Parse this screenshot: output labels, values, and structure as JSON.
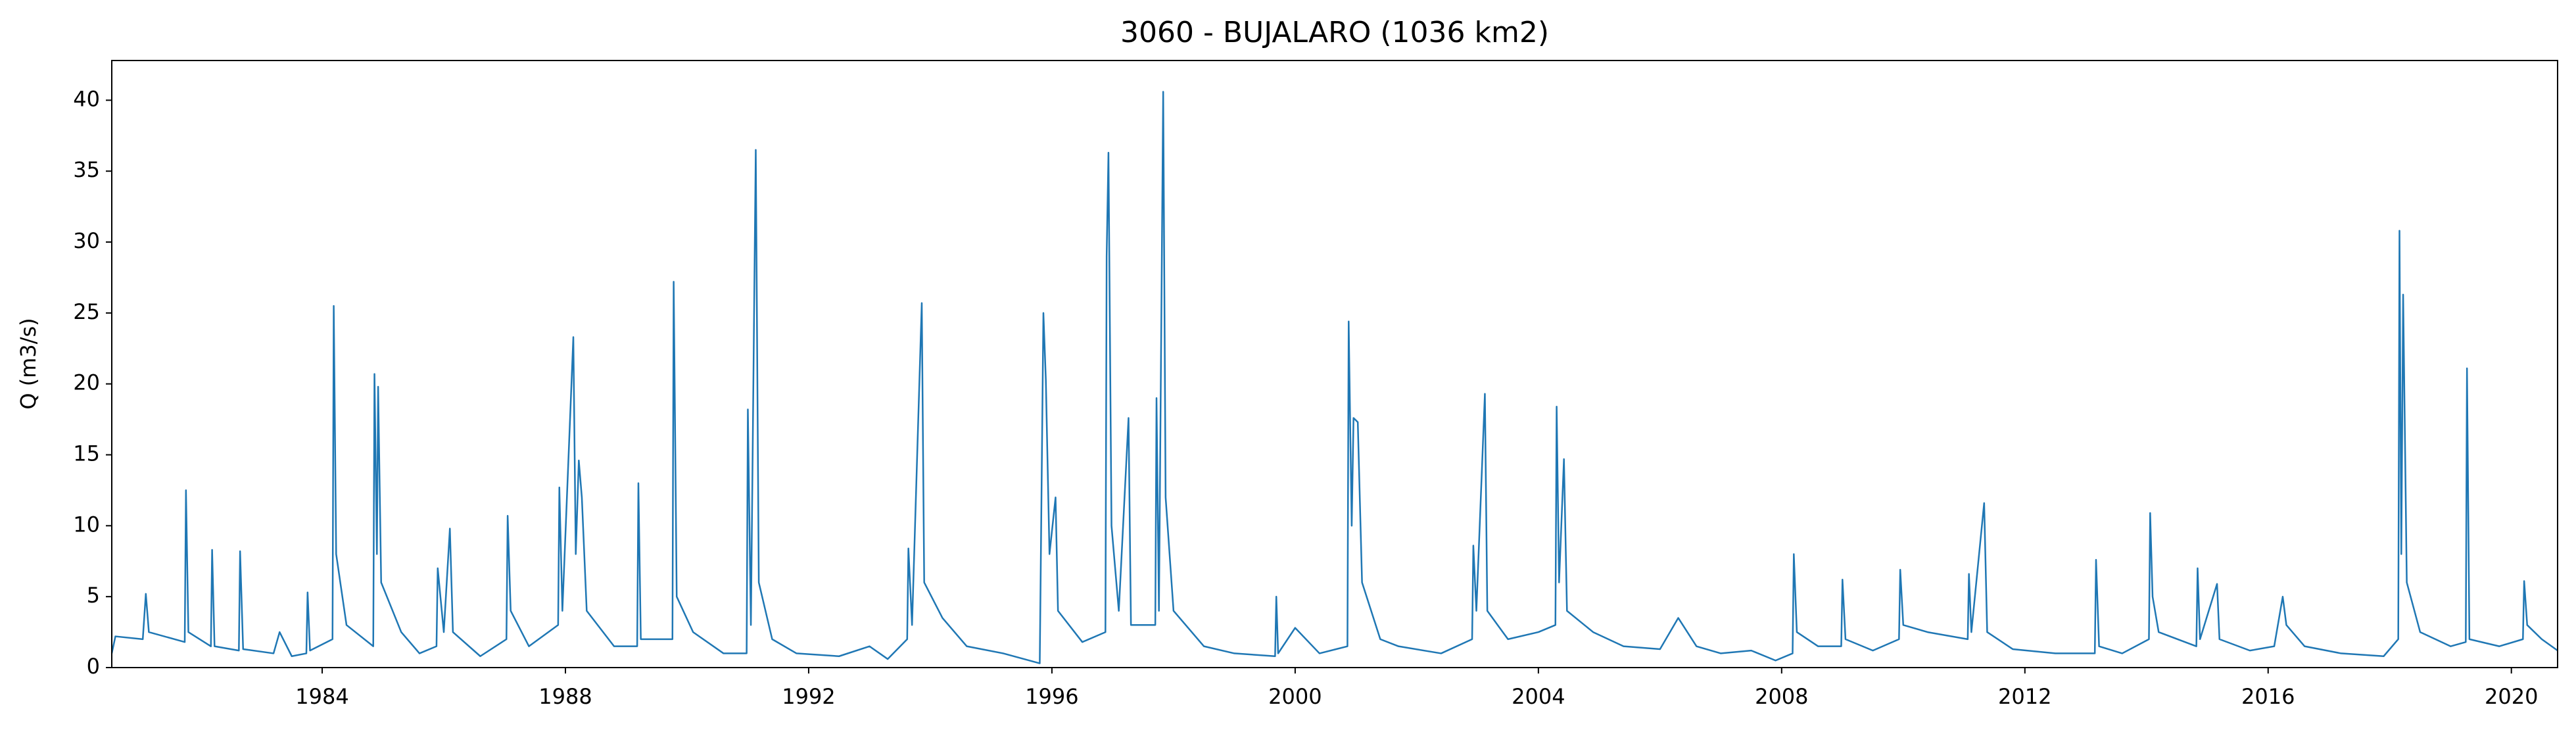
{
  "chart_data": {
    "type": "line",
    "title": "3060 - BUJALARO (1036 km2)",
    "y_label": "Q (m3/s)",
    "color": "#1f77b4",
    "x": [
      1980.54,
      1980.6,
      1981.05,
      1981.1,
      1981.15,
      1981.74,
      1981.76,
      1981.8,
      1982.17,
      1982.19,
      1982.23,
      1982.63,
      1982.65,
      1982.7,
      1983.2,
      1983.3,
      1983.5,
      1983.74,
      1983.76,
      1983.8,
      1984.17,
      1984.19,
      1984.23,
      1984.4,
      1984.84,
      1984.86,
      1984.9,
      1984.92,
      1984.97,
      1985.3,
      1985.6,
      1985.88,
      1985.9,
      1986.0,
      1986.1,
      1986.15,
      1986.6,
      1987.03,
      1987.05,
      1987.1,
      1987.4,
      1987.88,
      1987.9,
      1987.95,
      1988.13,
      1988.17,
      1988.22,
      1988.27,
      1988.35,
      1988.8,
      1989.18,
      1989.2,
      1989.24,
      1989.76,
      1989.78,
      1989.83,
      1990.1,
      1990.6,
      1990.98,
      1991.0,
      1991.05,
      1991.13,
      1991.18,
      1991.4,
      1991.8,
      1992.5,
      1993.0,
      1993.3,
      1993.62,
      1993.64,
      1993.7,
      1993.86,
      1993.9,
      1994.2,
      1994.6,
      1995.2,
      1995.8,
      1995.86,
      1995.9,
      1995.96,
      1996.06,
      1996.1,
      1996.5,
      1996.88,
      1996.9,
      1996.93,
      1996.98,
      1997.1,
      1997.26,
      1997.3,
      1997.7,
      1997.72,
      1997.76,
      1997.83,
      1997.87,
      1998.0,
      1998.5,
      1999.0,
      1999.67,
      1999.69,
      1999.72,
      2000.0,
      2000.4,
      2000.86,
      2000.88,
      2000.93,
      2000.96,
      2001.03,
      2001.1,
      2001.4,
      2001.7,
      2002.4,
      2002.91,
      2002.93,
      2002.98,
      2003.12,
      2003.16,
      2003.5,
      2004.0,
      2004.28,
      2004.3,
      2004.34,
      2004.42,
      2004.47,
      2004.9,
      2005.4,
      2006.0,
      2006.3,
      2006.6,
      2007.0,
      2007.5,
      2007.9,
      2008.18,
      2008.2,
      2008.25,
      2008.6,
      2008.98,
      2009.0,
      2009.05,
      2009.5,
      2009.93,
      2009.95,
      2010.0,
      2010.4,
      2011.06,
      2011.08,
      2011.12,
      2011.33,
      2011.38,
      2011.8,
      2012.5,
      2013.15,
      2013.17,
      2013.22,
      2013.6,
      2014.04,
      2014.06,
      2014.1,
      2014.2,
      2014.82,
      2014.84,
      2014.88,
      2015.16,
      2015.2,
      2015.7,
      2016.1,
      2016.24,
      2016.3,
      2016.6,
      2017.2,
      2017.9,
      2018.14,
      2018.16,
      2018.19,
      2018.22,
      2018.28,
      2018.5,
      2019.0,
      2019.25,
      2019.27,
      2019.31,
      2019.8,
      2020.19,
      2020.21,
      2020.26,
      2020.5,
      2020.76
    ],
    "values": [
      1.0,
      2.2,
      2.0,
      5.2,
      2.5,
      1.8,
      12.5,
      2.5,
      1.5,
      8.3,
      1.5,
      1.2,
      8.2,
      1.3,
      1.0,
      2.5,
      0.8,
      1.0,
      5.3,
      1.2,
      2.0,
      25.5,
      8.0,
      3.0,
      1.5,
      20.7,
      8.0,
      19.8,
      6.0,
      2.5,
      1.0,
      1.5,
      7.0,
      2.5,
      9.8,
      2.5,
      0.8,
      2.0,
      10.7,
      4.0,
      1.5,
      3.0,
      12.7,
      4.0,
      23.3,
      8.0,
      14.6,
      12.0,
      4.0,
      1.5,
      1.5,
      13.0,
      2.0,
      2.0,
      27.2,
      5.0,
      2.5,
      1.0,
      1.0,
      18.2,
      3.0,
      36.5,
      6.0,
      2.0,
      1.0,
      0.8,
      1.5,
      0.6,
      2.0,
      8.4,
      3.0,
      25.7,
      6.0,
      3.5,
      1.5,
      1.0,
      0.3,
      25.0,
      20.3,
      8.0,
      12.0,
      4.0,
      1.8,
      2.5,
      29.0,
      36.3,
      10.0,
      4.0,
      17.6,
      3.0,
      3.0,
      19.0,
      4.0,
      40.6,
      12.0,
      4.0,
      1.5,
      1.0,
      0.8,
      5.0,
      1.0,
      2.8,
      1.0,
      1.5,
      24.4,
      10.0,
      17.6,
      17.3,
      6.0,
      2.0,
      1.5,
      1.0,
      2.0,
      8.6,
      4.0,
      19.3,
      4.0,
      2.0,
      2.5,
      3.0,
      18.4,
      6.0,
      14.7,
      4.0,
      2.5,
      1.5,
      1.3,
      3.5,
      1.5,
      1.0,
      1.2,
      0.5,
      1.0,
      8.0,
      2.5,
      1.5,
      1.5,
      6.2,
      2.0,
      1.2,
      2.0,
      6.9,
      3.0,
      2.5,
      2.0,
      6.6,
      2.5,
      11.6,
      2.5,
      1.3,
      1.0,
      1.0,
      7.6,
      1.5,
      1.0,
      2.0,
      10.9,
      5.0,
      2.5,
      1.5,
      7.0,
      2.0,
      5.9,
      2.0,
      1.2,
      1.5,
      5.0,
      3.0,
      1.5,
      1.0,
      0.8,
      2.0,
      30.8,
      8.0,
      26.3,
      6.0,
      2.5,
      1.5,
      1.8,
      21.1,
      2.0,
      1.5,
      2.0,
      6.1,
      3.0,
      2.0,
      1.2
    ],
    "xlim": [
      1980.54,
      2020.76
    ],
    "xticks": [
      1984,
      1988,
      1992,
      1996,
      2000,
      2004,
      2008,
      2012,
      2016,
      2020
    ],
    "ylim": [
      0,
      42.8
    ],
    "yticks": [
      0,
      5,
      10,
      15,
      20,
      25,
      30,
      35,
      40
    ]
  }
}
